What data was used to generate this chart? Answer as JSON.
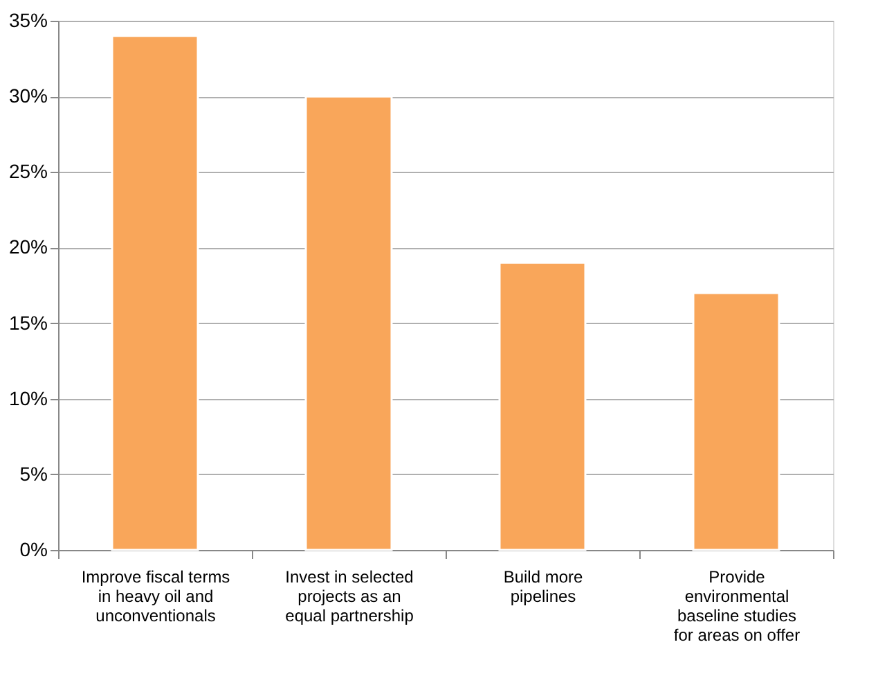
{
  "chart_data": {
    "type": "bar",
    "categories": [
      "Improve fiscal terms\nin heavy oil and\nunconventionals",
      "Invest in selected\nprojects as an\nequal partnership",
      "Build more\npipelines",
      "Provide\nenvironmental\nbaseline studies\nfor areas on offer"
    ],
    "values": [
      34,
      30,
      19,
      17
    ],
    "color": "#f9a65a",
    "ylim": [
      0,
      35
    ],
    "yticks": [
      {
        "value": 0,
        "label": "0%"
      },
      {
        "value": 5,
        "label": "5%"
      },
      {
        "value": 10,
        "label": "10%"
      },
      {
        "value": 15,
        "label": "15%"
      },
      {
        "value": 20,
        "label": "20%"
      },
      {
        "value": 25,
        "label": "25%"
      },
      {
        "value": 30,
        "label": "30%"
      },
      {
        "value": 35,
        "label": "35%"
      }
    ],
    "grid": "y"
  }
}
